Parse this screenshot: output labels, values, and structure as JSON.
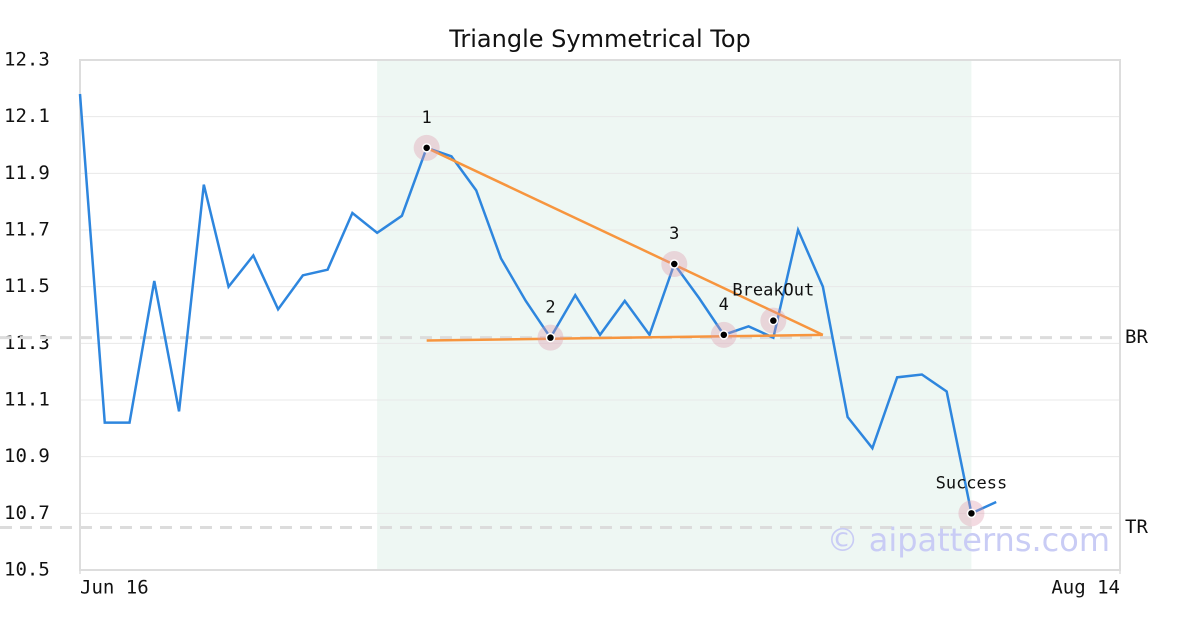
{
  "chart_data": {
    "type": "line",
    "title": "Triangle Symmetrical Top",
    "x": [
      0,
      1,
      2,
      3,
      4,
      5,
      6,
      7,
      8,
      9,
      10,
      11,
      12,
      13,
      14,
      15,
      16,
      17,
      18,
      19,
      20,
      21,
      22,
      23,
      24,
      25,
      26,
      27,
      28,
      29,
      30,
      31,
      32,
      33,
      34,
      35,
      36,
      37
    ],
    "values": [
      12.18,
      11.02,
      11.02,
      11.52,
      11.06,
      11.86,
      11.5,
      11.61,
      11.42,
      11.54,
      11.56,
      11.76,
      11.69,
      11.75,
      11.99,
      11.96,
      11.84,
      11.6,
      11.45,
      11.32,
      11.47,
      11.33,
      11.45,
      11.33,
      11.58,
      11.46,
      11.33,
      11.36,
      11.32,
      11.7,
      11.5,
      11.04,
      10.93,
      11.18,
      11.19,
      11.13,
      10.7,
      10.74
    ],
    "color": "#2e86de",
    "xlim": [
      0,
      42
    ],
    "xticks": [
      {
        "value": 0,
        "label": "Jun 16"
      },
      {
        "value": 42,
        "label": "Aug 14"
      }
    ],
    "ylim": [
      10.5,
      12.3
    ],
    "yticks": [
      12.3,
      12.1,
      11.9,
      11.7,
      11.5,
      11.3,
      11.1,
      10.9,
      10.7,
      10.5
    ],
    "grid": true,
    "shade": [
      12,
      36
    ],
    "trend_lines": [
      {
        "x": [
          14,
          30
        ],
        "y": [
          11.99,
          11.33
        ],
        "color": "#f7953e"
      },
      {
        "x": [
          14,
          30
        ],
        "y": [
          11.31,
          11.33
        ],
        "color": "#f7953e"
      }
    ],
    "annotations": [
      {
        "label": "1",
        "x": 14,
        "y": 11.99
      },
      {
        "label": "2",
        "x": 19,
        "y": 11.32
      },
      {
        "label": "3",
        "x": 24,
        "y": 11.58
      },
      {
        "label": "4",
        "x": 26,
        "y": 11.33
      },
      {
        "label": "BreakOut",
        "x": 28,
        "y": 11.38
      },
      {
        "label": "Success",
        "x": 36,
        "y": 10.7
      }
    ],
    "levels": [
      {
        "label": "BR",
        "value": 11.32
      },
      {
        "label": "TR",
        "value": 10.65
      }
    ],
    "watermark": "© aipatterns.com"
  }
}
